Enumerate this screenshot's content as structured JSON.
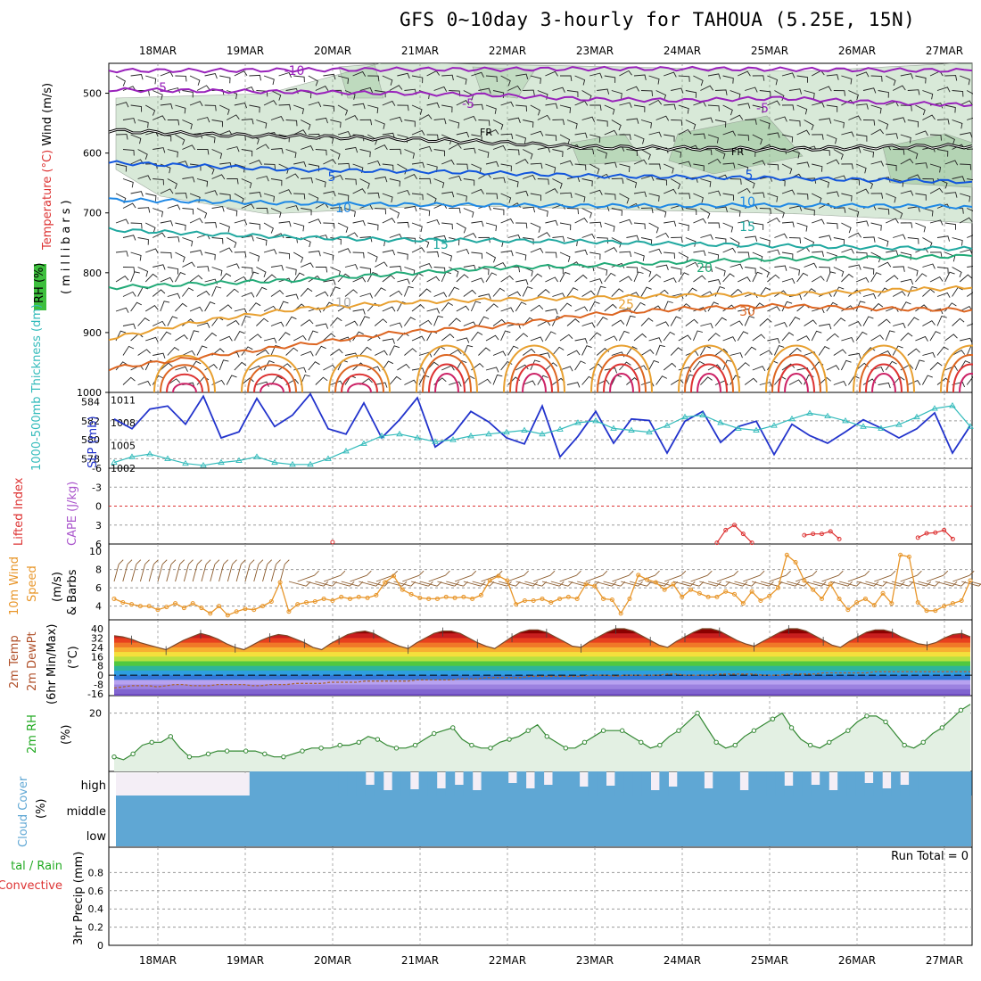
{
  "title": "GFS 0~10day 3-hourly for TAHOUA (5.25E, 15N)",
  "colors": {
    "wind": "#000000",
    "temperature": "#dd3333",
    "rh": "#22aa22",
    "cloud": "#5fa7d4",
    "slp": "#2233cc",
    "thickness": "#33bbbb",
    "cape": "#aa55cc",
    "lifted": "#dd3333",
    "windspeed": "#e8962a",
    "barb": "#8b5a2b",
    "rh2m": "#338833",
    "precipTotal": "#22aa22",
    "precipConv": "#dd3333"
  },
  "chart_data": [
    {
      "type": "contour",
      "panel": "upper-air",
      "xlabels": [
        "18MAR",
        "19MAR",
        "20MAR",
        "21MAR",
        "22MAR",
        "23MAR",
        "24MAR",
        "25MAR",
        "26MAR",
        "27MAR"
      ],
      "ylabel_parts": [
        "RH (%)",
        "Temperature (°C)",
        "Wind (m/s)",
        "(millibars)"
      ],
      "yticks": [
        500,
        600,
        700,
        800,
        900,
        1000
      ],
      "ylim": [
        1000,
        450
      ],
      "contours": [
        {
          "label": "-10",
          "color": "#9922bb",
          "values": [
            462,
            462,
            461,
            460,
            460,
            459,
            459,
            460,
            461,
            462
          ]
        },
        {
          "label": "-5",
          "color": "#9922bb",
          "values": [
            494,
            496,
            498,
            500,
            503,
            510,
            512,
            508,
            515,
            520
          ]
        },
        {
          "label": "FR",
          "color": "#000000",
          "values": [
            562,
            569,
            572,
            576,
            582,
            590,
            592,
            594,
            590,
            588
          ]
        },
        {
          "label": "5",
          "color": "#1155dd",
          "values": [
            616,
            622,
            628,
            630,
            633,
            638,
            640,
            642,
            645,
            648
          ]
        },
        {
          "label": "10",
          "color": "#1e88e5",
          "values": [
            678,
            681,
            684,
            686,
            687,
            688,
            688,
            687,
            688,
            690
          ]
        },
        {
          "label": "15",
          "color": "#20a8a0",
          "values": [
            728,
            735,
            741,
            745,
            746,
            748,
            752,
            755,
            758,
            760
          ]
        },
        {
          "label": "20",
          "color": "#22aa77",
          "values": [
            825,
            818,
            812,
            802,
            792,
            788,
            782,
            777,
            775,
            772
          ]
        },
        {
          "label": "25",
          "color": "#e8a030",
          "values": [
            910,
            880,
            860,
            850,
            845,
            842,
            838,
            836,
            830,
            825
          ]
        },
        {
          "label": "30",
          "color": "#dd6622",
          "values": [
            960,
            940,
            920,
            900,
            890,
            870,
            860,
            855,
            860,
            862
          ]
        }
      ],
      "contour_labels_shown": [
        "-10",
        "-5",
        "-5",
        "-5",
        "FR",
        "FR",
        "5",
        "5",
        "10",
        "10",
        "15",
        "15",
        "20",
        "25",
        "30",
        "10"
      ]
    },
    {
      "type": "line",
      "panel": "slp-thickness",
      "ylabel_left": "1000-500mb Thickness (dm)",
      "ylabel_right": "SLP (mb)",
      "left_ticks": [
        578,
        580,
        582,
        584
      ],
      "right_ticks": [
        1002,
        1005,
        1008,
        1011
      ],
      "series": [
        {
          "name": "SLP",
          "color": "#2233cc",
          "values": [
            1008.5,
            1007.2,
            1009.8,
            1010.2,
            1007.8,
            1011.5,
            1006.0,
            1006.8,
            1011.2,
            1007.5,
            1009.0,
            1011.8,
            1007.2,
            1006.5,
            1010.6,
            1006.0,
            1008.4,
            1011.3,
            1004.8,
            1006.5,
            1009.5,
            1008.1,
            1006.0,
            1005.2,
            1010.2,
            1003.5,
            1006.2,
            1009.5,
            1005.3,
            1008.5,
            1008.3,
            1004.0,
            1008.2,
            1009.5,
            1005.4,
            1007.5,
            1008.2,
            1003.8,
            1007.8,
            1006.3,
            1005.3,
            1006.8,
            1008.4,
            1007.3,
            1006.0,
            1007.2,
            1009.3,
            1004.0,
            1007.6
          ]
        },
        {
          "name": "1000-500mb Thickness",
          "color": "#33bbbb",
          "values": [
            577.6,
            578.2,
            578.5,
            578.0,
            577.5,
            577.3,
            577.6,
            577.8,
            578.2,
            577.6,
            577.4,
            577.4,
            578.0,
            578.8,
            579.6,
            580.4,
            580.6,
            580.2,
            579.8,
            580.0,
            580.4,
            580.6,
            580.8,
            581.0,
            580.6,
            581.1,
            581.8,
            582.0,
            581.2,
            581.0,
            580.8,
            581.5,
            582.4,
            582.6,
            581.8,
            581.2,
            581.0,
            581.5,
            582.2,
            582.8,
            582.5,
            582.0,
            581.4,
            581.2,
            581.6,
            582.4,
            583.3,
            583.6,
            581.4
          ]
        }
      ]
    },
    {
      "type": "line",
      "panel": "stability",
      "ylabel_left": "Lifted Index",
      "ylabel_right": "CAPE (J/kg)",
      "yticks": [
        "-6",
        "-3",
        "0",
        "3",
        "6"
      ],
      "series": [
        {
          "name": "Lifted Index",
          "color": "#dd3333",
          "values": [
            null,
            null,
            null,
            null,
            null,
            null,
            null,
            null,
            null,
            null,
            null,
            null,
            null,
            null,
            null,
            null,
            null,
            null,
            null,
            null,
            null,
            null,
            null,
            null,
            null,
            5.7,
            null,
            null,
            null,
            null,
            null,
            null,
            null,
            null,
            null,
            null,
            null,
            null,
            null,
            null,
            null,
            null,
            null,
            null,
            null,
            null,
            null,
            null,
            null,
            null,
            null,
            null,
            null,
            null,
            null,
            null,
            null,
            null,
            null,
            null,
            null,
            null,
            null,
            null,
            null,
            null,
            null,
            null,
            null,
            5.8,
            3.8,
            3.0,
            4.4,
            5.8,
            null,
            null,
            null,
            null,
            null,
            4.6,
            4.4,
            4.4,
            4.0,
            5.2,
            null,
            null,
            null,
            null,
            null,
            null,
            null,
            null,
            5.0,
            4.3,
            4.2,
            3.8,
            5.2,
            null,
            null
          ]
        }
      ]
    },
    {
      "type": "line",
      "panel": "10m-wind",
      "ylabel": "10m Wind Speed & Barbs (m/s)",
      "yticks": [
        4,
        6,
        8,
        10
      ],
      "series": [
        {
          "name": "10m Wind Speed",
          "color": "#e8962a",
          "values": [
            4.8,
            4.4,
            4.2,
            4.0,
            4.0,
            3.6,
            3.9,
            4.3,
            3.8,
            4.3,
            3.8,
            3.2,
            4.0,
            3.0,
            3.4,
            3.7,
            3.6,
            4.0,
            4.5,
            6.6,
            3.4,
            4.2,
            4.4,
            4.5,
            4.8,
            4.6,
            5.0,
            4.8,
            5.0,
            4.9,
            5.2,
            6.6,
            7.3,
            5.8,
            5.3,
            4.9,
            4.8,
            4.8,
            5.0,
            4.9,
            5.0,
            4.8,
            5.2,
            6.8,
            7.3,
            6.8,
            4.2,
            4.6,
            4.6,
            4.8,
            4.4,
            4.8,
            5.0,
            4.8,
            6.4,
            6.2,
            4.8,
            4.7,
            3.2,
            4.8,
            7.4,
            6.9,
            6.6,
            5.8,
            6.4,
            5.0,
            5.8,
            5.4,
            5.0,
            5.0,
            5.6,
            5.3,
            4.3,
            5.6,
            4.6,
            5.1,
            6.0,
            9.6,
            8.8,
            6.8,
            5.8,
            4.8,
            6.4,
            4.8,
            3.6,
            4.4,
            4.8,
            4.1,
            5.4,
            4.3,
            9.6,
            9.4,
            4.4,
            3.5,
            3.5,
            4.0,
            4.3,
            4.6,
            6.8
          ]
        }
      ]
    },
    {
      "type": "area",
      "panel": "2m-temp",
      "ylabel": "2m Temp 2m DewPt (6hr Min/Max) (°C)",
      "yticks": [
        "40",
        "32",
        "24",
        "16",
        "8",
        "0",
        "-8",
        "-16"
      ],
      "series": [
        {
          "name": "2m Temp",
          "color": "#7a4a2a",
          "values": [
            34,
            33,
            31,
            28,
            26,
            24,
            22,
            26,
            30,
            33,
            36,
            34,
            31,
            27,
            24,
            22,
            26,
            30,
            33,
            35,
            34,
            31,
            28,
            24,
            22,
            27,
            31,
            35,
            37,
            38,
            36,
            32,
            28,
            25,
            23,
            28,
            32,
            36,
            38,
            38,
            36,
            32,
            28,
            25,
            23,
            28,
            33,
            37,
            39,
            39,
            37,
            33,
            29,
            25,
            24,
            29,
            33,
            37,
            40,
            40,
            38,
            34,
            30,
            26,
            24,
            29,
            33,
            37,
            40,
            40,
            38,
            34,
            30,
            27,
            25,
            29,
            33,
            37,
            40,
            40,
            38,
            34,
            30,
            26,
            24,
            29,
            33,
            37,
            39,
            39,
            37,
            33,
            30,
            27,
            26,
            28,
            32,
            35,
            36,
            33
          ]
        },
        {
          "name": "2m DewPt",
          "color": "#aa6633",
          "values": [
            -11,
            -10,
            -9,
            -9,
            -9,
            -10,
            -9,
            -8,
            -8,
            -9,
            -9,
            -9,
            -8,
            -8,
            -8,
            -8,
            -9,
            -9,
            -8,
            -8,
            -8,
            -7,
            -7,
            -7,
            -7,
            -6,
            -6,
            -6,
            -6,
            -5,
            -5,
            -5,
            -5,
            -5,
            -5,
            -4,
            -4,
            -4,
            -4,
            -4,
            -3,
            -3,
            -3,
            -2,
            -2,
            -2,
            -2,
            -2,
            -1,
            -1,
            -1,
            -1,
            -1,
            -1,
            -1,
            0,
            0,
            0,
            -1,
            0,
            0,
            0,
            0,
            0,
            1,
            1,
            0,
            0,
            0,
            0,
            1,
            1,
            1,
            1,
            1,
            0,
            0,
            0,
            1,
            1,
            1,
            1,
            2,
            2,
            2,
            2,
            2,
            2,
            3,
            3,
            3,
            3,
            3,
            3,
            3,
            3,
            3,
            3,
            3,
            3
          ]
        }
      ]
    },
    {
      "type": "area",
      "panel": "2m-rh",
      "ylabel": "2m RH (%)",
      "yticks": [
        20
      ],
      "series": [
        {
          "name": "2m RH",
          "color": "#338833",
          "values": [
            5,
            4,
            6,
            9,
            10,
            10,
            12,
            8,
            5,
            5,
            6,
            7,
            7,
            7,
            7,
            7,
            6,
            5,
            5,
            6,
            7,
            8,
            8,
            8,
            9,
            9,
            10,
            12,
            11,
            9,
            8,
            8,
            9,
            11,
            13,
            14,
            15,
            11,
            9,
            8,
            8,
            10,
            11,
            12,
            14,
            16,
            12,
            10,
            8,
            8,
            10,
            12,
            14,
            14,
            14,
            12,
            10,
            8,
            9,
            12,
            14,
            17,
            20,
            15,
            10,
            8,
            9,
            12,
            14,
            16,
            18,
            20,
            15,
            11,
            9,
            8,
            10,
            12,
            14,
            17,
            19,
            19,
            17,
            13,
            9,
            8,
            10,
            13,
            15,
            18,
            21,
            23
          ]
        }
      ]
    },
    {
      "type": "bar",
      "panel": "cloud-cover",
      "ylabel": "Cloud Cover (%)",
      "levels": [
        "high",
        "middle",
        "low"
      ],
      "series": [
        {
          "name": "high",
          "color": "#5fa7d4",
          "values": [
            0,
            0,
            0,
            0,
            0,
            0,
            0,
            0,
            0,
            0,
            0,
            0,
            0,
            0,
            0,
            100,
            100,
            100,
            100,
            100,
            100,
            100,
            100,
            100,
            100,
            100,
            100,
            100,
            100,
            100,
            100,
            100,
            100,
            100,
            100,
            100,
            100,
            100,
            100,
            100,
            100,
            100,
            100,
            100,
            100,
            100,
            100,
            100,
            100,
            100,
            100,
            100,
            100,
            100,
            100,
            100,
            100,
            100,
            100,
            100,
            100,
            100,
            100,
            100,
            100,
            100,
            100,
            100,
            100,
            100,
            100,
            100,
            100,
            100,
            100,
            100,
            100,
            100,
            100,
            100,
            100,
            100,
            100,
            100,
            100,
            100,
            100,
            100,
            100,
            100,
            100,
            100,
            100,
            100,
            100,
            100
          ]
        }
      ]
    },
    {
      "type": "line",
      "panel": "precip",
      "ylabel": "3hr Precip (mm)",
      "legend": [
        "Total / Rain",
        "Convective"
      ],
      "yticks": [
        0,
        0.2,
        0.4,
        0.6,
        0.8
      ],
      "ylim": [
        0,
        1
      ],
      "annotation": "Run Total = 0",
      "values": []
    }
  ]
}
